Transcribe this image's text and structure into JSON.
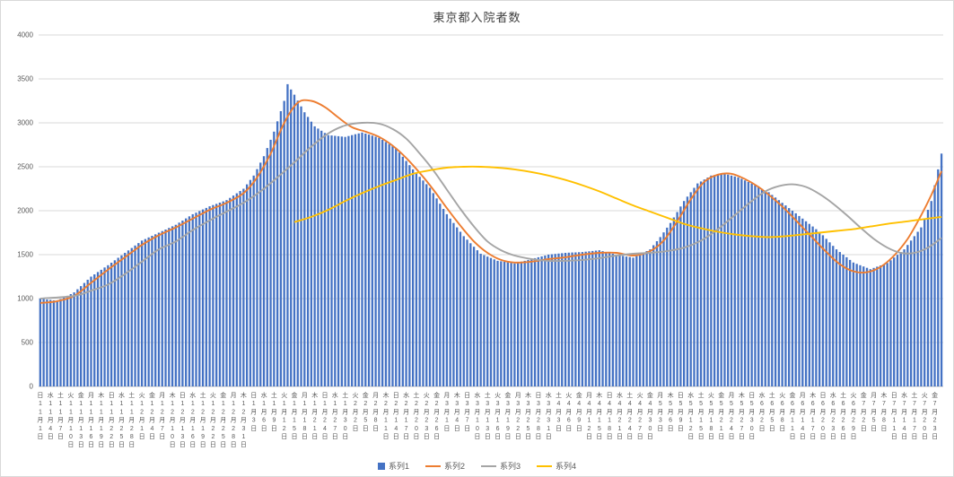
{
  "window": {
    "background": "#FFFFFF",
    "border_color": "#D9D9D9"
  },
  "chart_data": {
    "type": "bar",
    "title": "東京都入院者数",
    "ylim": [
      0,
      4000
    ],
    "y_ticks": [
      0,
      500,
      1000,
      1500,
      2000,
      2500,
      3000,
      3500,
      4000
    ],
    "grid": true,
    "legend_position": "bottom",
    "x_tick_interval_days": 3,
    "x_tick_labels": [
      "日11月1日",
      "水11月4日",
      "土11月7日",
      "火11月10日",
      "金11月13日",
      "月11月16日",
      "木11月19日",
      "日11月22日",
      "水11月25日",
      "土11月28日",
      "火12月1日",
      "金12月4日",
      "月12月7日",
      "木12月10日",
      "日12月13日",
      "水12月16日",
      "土12月19日",
      "火12月22日",
      "金12月25日",
      "月12月28日",
      "木12月31日",
      "日1月3日",
      "水1月6日",
      "土1月9日",
      "火1月12日",
      "金1月15日",
      "月1月18日",
      "木1月21日",
      "日1月24日",
      "水1月27日",
      "土1月30日",
      "火2月2日",
      "金2月5日",
      "月2月8日",
      "木2月11日",
      "日2月14日",
      "水2月17日",
      "土2月20日",
      "火2月23日",
      "金2月26日",
      "月3月1日",
      "木3月4日",
      "日3月7日",
      "水3月10日",
      "土3月13日",
      "火3月16日",
      "金3月19日",
      "月3月22日",
      "木3月25日",
      "日3月28日",
      "水3月31日",
      "土4月3日",
      "火4月6日",
      "金4月9日",
      "月4月12日",
      "木4月15日",
      "日4月18日",
      "水4月21日",
      "土4月24日",
      "火4月27日",
      "金4月30日",
      "月5月3日",
      "木5月6日",
      "日5月9日",
      "水5月12日",
      "土5月15日",
      "火5月18日",
      "金5月21日",
      "月5月24日",
      "木5月27日",
      "日5月30日",
      "水6月2日",
      "土6月5日",
      "火6月8日",
      "金6月11日",
      "月6月14日",
      "木6月17日",
      "日6月20日",
      "水6月23日",
      "土6月26日",
      "火6月29日",
      "金7月2日",
      "月7月5日",
      "木7月8日",
      "日7月11日",
      "水7月14日",
      "土7月17日",
      "火7月20日",
      "金7月23日"
    ],
    "series": [
      {
        "name": "系列1",
        "type": "bar",
        "color": "#4472C4",
        "values": [
          1000,
          995,
          990,
          985,
          980,
          975,
          994,
          1013,
          1032,
          1051,
          1070,
          1106,
          1142,
          1178,
          1214,
          1250,
          1276,
          1302,
          1328,
          1354,
          1380,
          1408,
          1436,
          1464,
          1492,
          1520,
          1548,
          1576,
          1604,
          1632,
          1660,
          1678,
          1696,
          1714,
          1732,
          1750,
          1768,
          1786,
          1804,
          1822,
          1840,
          1864,
          1888,
          1912,
          1936,
          1960,
          1978,
          1996,
          2014,
          2032,
          2050,
          2064,
          2078,
          2092,
          2106,
          2120,
          2146,
          2172,
          2198,
          2224,
          2250,
          2300,
          2350,
          2400,
          2473,
          2547,
          2620,
          2713,
          2807,
          2900,
          3017,
          3133,
          3250,
          3440,
          3380,
          3320,
          3253,
          3187,
          3120,
          3067,
          3013,
          2960,
          2935,
          2910,
          2885,
          2860,
          2856,
          2852,
          2848,
          2844,
          2840,
          2850,
          2860,
          2870,
          2880,
          2890,
          2878,
          2866,
          2854,
          2842,
          2830,
          2806,
          2782,
          2758,
          2734,
          2710,
          2662,
          2614,
          2566,
          2518,
          2470,
          2428,
          2386,
          2344,
          2302,
          2260,
          2200,
          2140,
          2080,
          2020,
          1960,
          1910,
          1860,
          1810,
          1760,
          1710,
          1670,
          1630,
          1590,
          1550,
          1510,
          1494,
          1478,
          1462,
          1446,
          1430,
          1424,
          1418,
          1412,
          1406,
          1400,
          1410,
          1420,
          1430,
          1440,
          1450,
          1460,
          1470,
          1480,
          1490,
          1500,
          1504,
          1508,
          1512,
          1516,
          1520,
          1522,
          1524,
          1526,
          1528,
          1530,
          1534,
          1538,
          1542,
          1546,
          1550,
          1540,
          1530,
          1520,
          1510,
          1500,
          1493,
          1486,
          1479,
          1472,
          1465,
          1484,
          1503,
          1522,
          1541,
          1560,
          1607,
          1653,
          1700,
          1753,
          1807,
          1860,
          1923,
          1985,
          2048,
          2110,
          2160,
          2210,
          2260,
          2310,
          2333,
          2355,
          2378,
          2400,
          2405,
          2410,
          2415,
          2420,
          2410,
          2400,
          2390,
          2380,
          2363,
          2345,
          2328,
          2310,
          2290,
          2270,
          2250,
          2230,
          2210,
          2180,
          2150,
          2120,
          2090,
          2060,
          2030,
          2000,
          1970,
          1940,
          1910,
          1880,
          1850,
          1820,
          1790,
          1760,
          1720,
          1680,
          1640,
          1600,
          1560,
          1530,
          1500,
          1470,
          1440,
          1410,
          1395,
          1380,
          1365,
          1350,
          1335,
          1349,
          1363,
          1377,
          1391,
          1405,
          1436,
          1467,
          1498,
          1529,
          1560,
          1610,
          1660,
          1710,
          1760,
          1810,
          1910,
          2010,
          2110,
          2290,
          2470,
          2650
        ]
      },
      {
        "name": "系列2",
        "type": "line",
        "color": "#ED7D31",
        "points": [
          [
            0,
            950
          ],
          [
            5,
            970
          ],
          [
            10,
            1030
          ],
          [
            15,
            1180
          ],
          [
            20,
            1330
          ],
          [
            25,
            1470
          ],
          [
            30,
            1610
          ],
          [
            35,
            1720
          ],
          [
            40,
            1810
          ],
          [
            45,
            1910
          ],
          [
            50,
            2010
          ],
          [
            55,
            2090
          ],
          [
            60,
            2200
          ],
          [
            64,
            2380
          ],
          [
            68,
            2650
          ],
          [
            72,
            3000
          ],
          [
            76,
            3230
          ],
          [
            80,
            3250
          ],
          [
            84,
            3180
          ],
          [
            88,
            3060
          ],
          [
            92,
            2950
          ],
          [
            96,
            2900
          ],
          [
            100,
            2840
          ],
          [
            104,
            2740
          ],
          [
            108,
            2600
          ],
          [
            112,
            2430
          ],
          [
            116,
            2240
          ],
          [
            120,
            2030
          ],
          [
            124,
            1830
          ],
          [
            128,
            1650
          ],
          [
            132,
            1520
          ],
          [
            136,
            1440
          ],
          [
            140,
            1410
          ],
          [
            145,
            1420
          ],
          [
            150,
            1450
          ],
          [
            155,
            1470
          ],
          [
            160,
            1500
          ],
          [
            165,
            1520
          ],
          [
            170,
            1520
          ],
          [
            175,
            1490
          ],
          [
            180,
            1540
          ],
          [
            184,
            1660
          ],
          [
            188,
            1880
          ],
          [
            192,
            2130
          ],
          [
            196,
            2330
          ],
          [
            200,
            2410
          ],
          [
            204,
            2420
          ],
          [
            208,
            2360
          ],
          [
            212,
            2270
          ],
          [
            216,
            2150
          ],
          [
            220,
            2010
          ],
          [
            224,
            1850
          ],
          [
            228,
            1690
          ],
          [
            232,
            1530
          ],
          [
            236,
            1390
          ],
          [
            240,
            1310
          ],
          [
            244,
            1300
          ],
          [
            248,
            1360
          ],
          [
            252,
            1490
          ],
          [
            256,
            1680
          ],
          [
            260,
            1950
          ],
          [
            263,
            2180
          ],
          [
            266,
            2450
          ]
        ]
      },
      {
        "name": "系列3",
        "type": "line",
        "color": "#A5A5A5",
        "points": [
          [
            0,
            1000
          ],
          [
            10,
            1030
          ],
          [
            15,
            1090
          ],
          [
            20,
            1160
          ],
          [
            25,
            1280
          ],
          [
            30,
            1420
          ],
          [
            35,
            1560
          ],
          [
            40,
            1650
          ],
          [
            45,
            1780
          ],
          [
            50,
            1890
          ],
          [
            55,
            1990
          ],
          [
            60,
            2090
          ],
          [
            65,
            2220
          ],
          [
            70,
            2380
          ],
          [
            75,
            2550
          ],
          [
            80,
            2730
          ],
          [
            85,
            2880
          ],
          [
            90,
            2970
          ],
          [
            95,
            3000
          ],
          [
            100,
            2990
          ],
          [
            104,
            2930
          ],
          [
            108,
            2820
          ],
          [
            112,
            2650
          ],
          [
            116,
            2460
          ],
          [
            120,
            2240
          ],
          [
            124,
            2020
          ],
          [
            128,
            1820
          ],
          [
            132,
            1650
          ],
          [
            136,
            1550
          ],
          [
            140,
            1490
          ],
          [
            145,
            1450
          ],
          [
            150,
            1430
          ],
          [
            155,
            1430
          ],
          [
            160,
            1440
          ],
          [
            165,
            1460
          ],
          [
            170,
            1490
          ],
          [
            175,
            1510
          ],
          [
            180,
            1520
          ],
          [
            185,
            1540
          ],
          [
            190,
            1580
          ],
          [
            195,
            1660
          ],
          [
            200,
            1790
          ],
          [
            205,
            1950
          ],
          [
            210,
            2110
          ],
          [
            214,
            2220
          ],
          [
            218,
            2280
          ],
          [
            222,
            2300
          ],
          [
            226,
            2270
          ],
          [
            230,
            2190
          ],
          [
            234,
            2080
          ],
          [
            238,
            1950
          ],
          [
            242,
            1810
          ],
          [
            246,
            1680
          ],
          [
            250,
            1580
          ],
          [
            254,
            1520
          ],
          [
            258,
            1520
          ],
          [
            262,
            1580
          ],
          [
            266,
            1690
          ]
        ]
      },
      {
        "name": "系列4",
        "type": "line",
        "color": "#FFC000",
        "points": [
          [
            75,
            1870
          ],
          [
            80,
            1930
          ],
          [
            85,
            2010
          ],
          [
            90,
            2110
          ],
          [
            95,
            2200
          ],
          [
            100,
            2280
          ],
          [
            105,
            2350
          ],
          [
            110,
            2420
          ],
          [
            115,
            2460
          ],
          [
            120,
            2490
          ],
          [
            125,
            2500
          ],
          [
            130,
            2500
          ],
          [
            135,
            2490
          ],
          [
            140,
            2470
          ],
          [
            145,
            2440
          ],
          [
            150,
            2400
          ],
          [
            155,
            2350
          ],
          [
            160,
            2290
          ],
          [
            165,
            2220
          ],
          [
            170,
            2140
          ],
          [
            175,
            2060
          ],
          [
            180,
            1990
          ],
          [
            185,
            1920
          ],
          [
            190,
            1850
          ],
          [
            195,
            1800
          ],
          [
            200,
            1760
          ],
          [
            205,
            1730
          ],
          [
            210,
            1710
          ],
          [
            215,
            1700
          ],
          [
            220,
            1710
          ],
          [
            225,
            1730
          ],
          [
            230,
            1750
          ],
          [
            235,
            1770
          ],
          [
            240,
            1790
          ],
          [
            245,
            1820
          ],
          [
            250,
            1850
          ],
          [
            255,
            1875
          ],
          [
            260,
            1900
          ],
          [
            266,
            1930
          ]
        ]
      }
    ]
  },
  "legend": {
    "items": [
      {
        "label": "系列1",
        "color": "#4472C4",
        "marker": "square"
      },
      {
        "label": "系列2",
        "color": "#ED7D31",
        "marker": "line"
      },
      {
        "label": "系列3",
        "color": "#A5A5A5",
        "marker": "line"
      },
      {
        "label": "系列4",
        "color": "#FFC000",
        "marker": "line"
      }
    ]
  }
}
